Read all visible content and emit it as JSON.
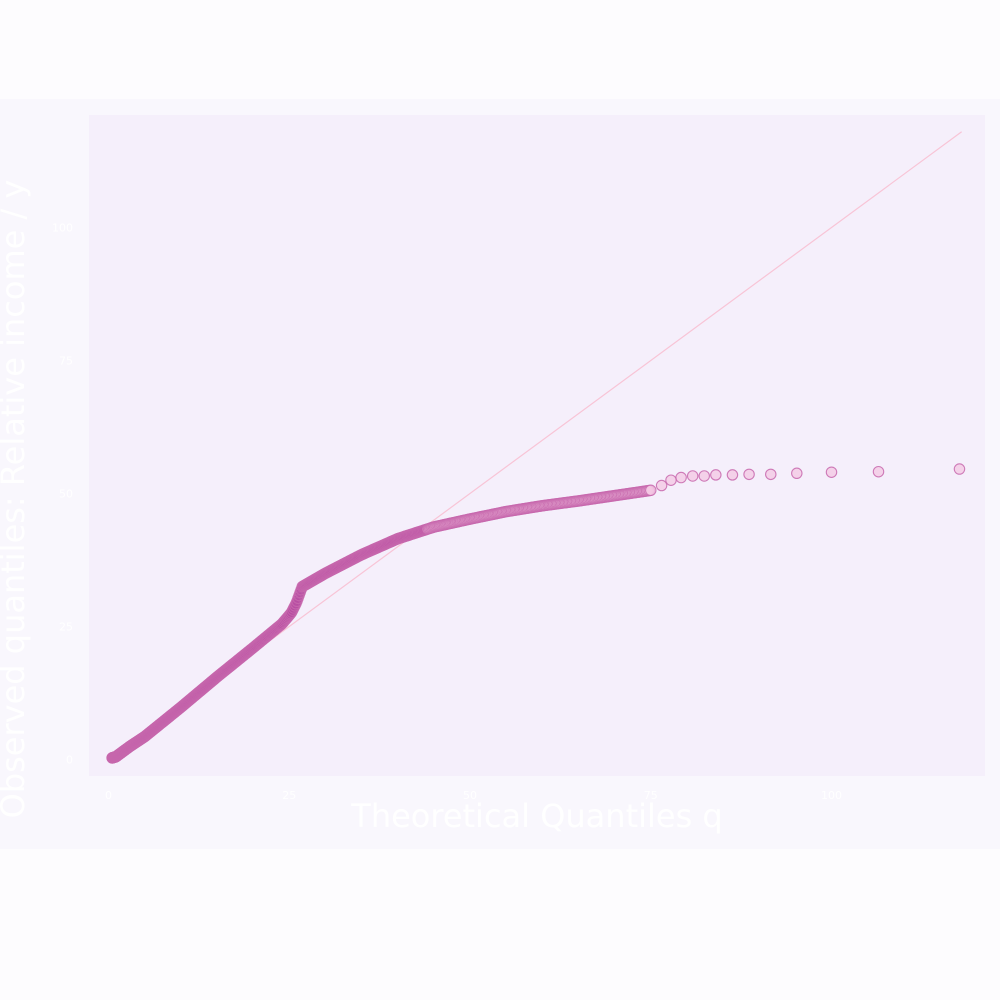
{
  "chart_data": {
    "type": "scatter",
    "title": "",
    "xlabel": "Theoretical Quantiles q",
    "ylabel": "Observed quantiles: Relative income / y",
    "xlim": [
      -3,
      121
    ],
    "ylim": [
      -3,
      121
    ],
    "x_ticks": [
      0,
      25,
      50,
      75,
      100
    ],
    "x_tick_labels": [
      "0",
      "25",
      "50",
      "75",
      "100"
    ],
    "y_ticks": [
      0,
      25,
      50,
      75,
      100
    ],
    "y_tick_labels": [
      "0",
      "25",
      "50",
      "75",
      "100"
    ],
    "grid": false,
    "legend": "none",
    "reference_line": {
      "from": [
        0,
        0
      ],
      "to": [
        118,
        118
      ],
      "color": "#f8c4d6"
    },
    "colors": {
      "plot_background": "#f5effb",
      "figure_background": "#f9f7fd",
      "marker_fill_dense": "#b74aa1",
      "marker_fill_sparse": "#f3c7e3",
      "marker_edge": "#c767ad",
      "axis_text": "#ffffff"
    },
    "series": [
      {
        "curve_knots": [
          [
            0.5,
            0.3
          ],
          [
            1,
            0.5
          ],
          [
            2,
            1.5
          ],
          [
            3,
            2.5
          ],
          [
            5,
            4.3
          ],
          [
            7,
            6.5
          ],
          [
            10,
            9.8
          ],
          [
            15,
            15.5
          ],
          [
            20,
            21
          ],
          [
            24,
            25.5
          ],
          [
            25.3,
            27.6
          ],
          [
            26,
            29.5
          ],
          [
            26.8,
            32.5
          ],
          [
            30,
            35
          ],
          [
            35,
            38.5
          ],
          [
            40,
            41.5
          ],
          [
            45,
            43.7
          ],
          [
            50,
            45.2
          ],
          [
            55,
            46.6
          ],
          [
            60,
            47.7
          ],
          [
            65,
            48.6
          ],
          [
            70,
            49.6
          ],
          [
            75,
            50.6
          ]
        ],
        "curve_points": 520,
        "tail": [
          [
            76.5,
            51.5
          ],
          [
            77.8,
            52.5
          ],
          [
            79.2,
            53.0
          ],
          [
            80.8,
            53.3
          ],
          [
            82.4,
            53.3
          ],
          [
            84,
            53.5
          ],
          [
            86.3,
            53.5
          ],
          [
            88.6,
            53.6
          ],
          [
            91.6,
            53.6
          ],
          [
            95.2,
            53.8
          ],
          [
            100,
            54.0
          ],
          [
            106.5,
            54.1
          ],
          [
            117.7,
            54.6
          ]
        ]
      }
    ]
  }
}
